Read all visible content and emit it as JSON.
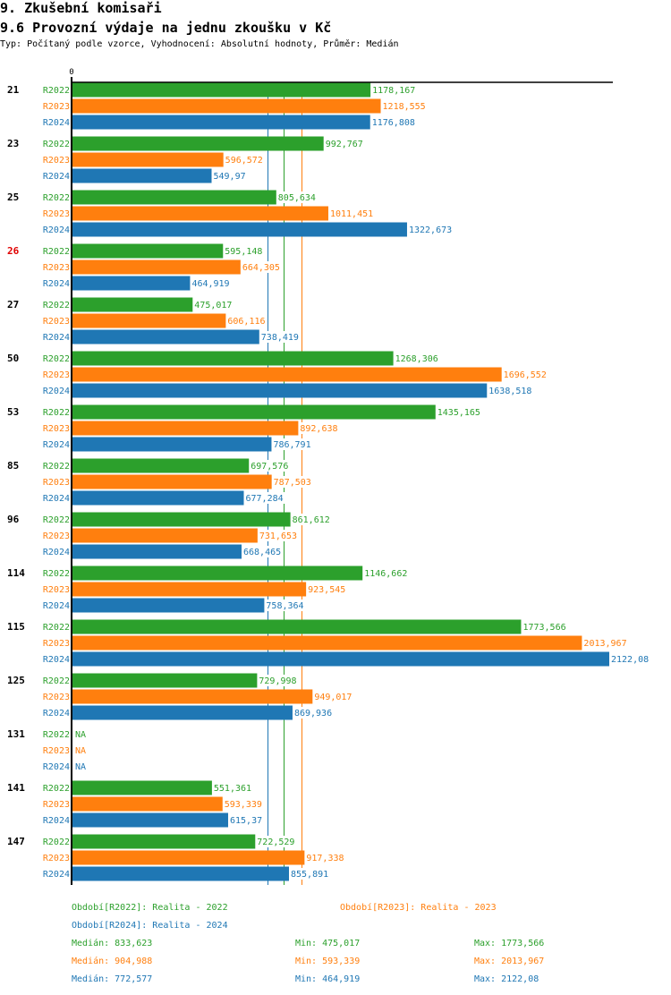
{
  "header": {
    "section_title": "9. Zkušební komisaři",
    "chart_title": "9.6 Provozní výdaje na jednu zkoušku v Kč",
    "subtitle": "Typ: Počítaný podle vzorce, Vyhodnocení: Absolutní hodnoty, Průměr: Medián"
  },
  "colors": {
    "R2022": "#2ca02c",
    "R2023": "#ff7f0e",
    "R2024": "#1f77b4",
    "highlight": "#e00000",
    "axis": "#000000"
  },
  "chart_data": {
    "type": "bar",
    "orientation": "horizontal",
    "title": "9.6 Provozní výdaje na jednu zkoušku v Kč",
    "xlabel": "",
    "ylabel": "",
    "x_tick_labels": [
      "0"
    ],
    "xlim": [
      0,
      2122.08
    ],
    "grid": false,
    "decimal_separator": ",",
    "categories": [
      "21",
      "23",
      "25",
      "26",
      "27",
      "50",
      "53",
      "85",
      "96",
      "114",
      "115",
      "125",
      "131",
      "141",
      "147"
    ],
    "highlighted_category": "26",
    "series": [
      {
        "name": "R2022",
        "values": [
          1178.167,
          992.767,
          805.634,
          595.148,
          475.017,
          1268.306,
          1435.165,
          697.576,
          861.612,
          1146.662,
          1773.566,
          729.998,
          null,
          551.361,
          722.529
        ]
      },
      {
        "name": "R2023",
        "values": [
          1218.555,
          596.572,
          1011.451,
          664.305,
          606.116,
          1696.552,
          892.638,
          787.503,
          731.653,
          923.545,
          2013.967,
          949.017,
          null,
          593.339,
          917.338
        ]
      },
      {
        "name": "R2024",
        "values": [
          1176.808,
          549.97,
          1322.673,
          464.919,
          738.419,
          1638.518,
          786.791,
          677.284,
          668.465,
          758.364,
          2122.08,
          869.936,
          null,
          615.37,
          855.891
        ]
      }
    ],
    "value_labels": {
      "R2022": [
        "1178,167",
        "992,767",
        "805,634",
        "595,148",
        "475,017",
        "1268,306",
        "1435,165",
        "697,576",
        "861,612",
        "1146,662",
        "1773,566",
        "729,998",
        "NA",
        "551,361",
        "722,529"
      ],
      "R2023": [
        "1218,555",
        "596,572",
        "1011,451",
        "664,305",
        "606,116",
        "1696,552",
        "892,638",
        "787,503",
        "731,653",
        "923,545",
        "2013,967",
        "949,017",
        "NA",
        "593,339",
        "917,338"
      ],
      "R2024": [
        "1176,808",
        "549,97",
        "1322,673",
        "464,919",
        "738,419",
        "1638,518",
        "786,791",
        "677,284",
        "668,465",
        "758,364",
        "2122,08",
        "869,936",
        "NA",
        "615,37",
        "855,891"
      ]
    },
    "reference_lines": [
      {
        "series": "R2022",
        "kind": "median",
        "value": 833.623
      },
      {
        "series": "R2023",
        "kind": "median",
        "value": 904.988
      },
      {
        "series": "R2024",
        "kind": "median",
        "value": 772.577
      }
    ],
    "legend": [
      {
        "series": "R2022",
        "label": "Období[R2022]: Realita - 2022"
      },
      {
        "series": "R2023",
        "label": "Období[R2023]: Realita - 2023"
      },
      {
        "series": "R2024",
        "label": "Období[R2024]: Realita - 2024"
      }
    ],
    "legend_placement": "bottom",
    "stats": [
      {
        "series": "R2022",
        "median": "Medián: 833,623",
        "min": "Min: 475,017",
        "max": "Max: 1773,566"
      },
      {
        "series": "R2023",
        "median": "Medián: 904,988",
        "min": "Min: 593,339",
        "max": "Max: 2013,967"
      },
      {
        "series": "R2024",
        "median": "Medián: 772,577",
        "min": "Min: 464,919",
        "max": "Max: 2122,08"
      }
    ]
  }
}
